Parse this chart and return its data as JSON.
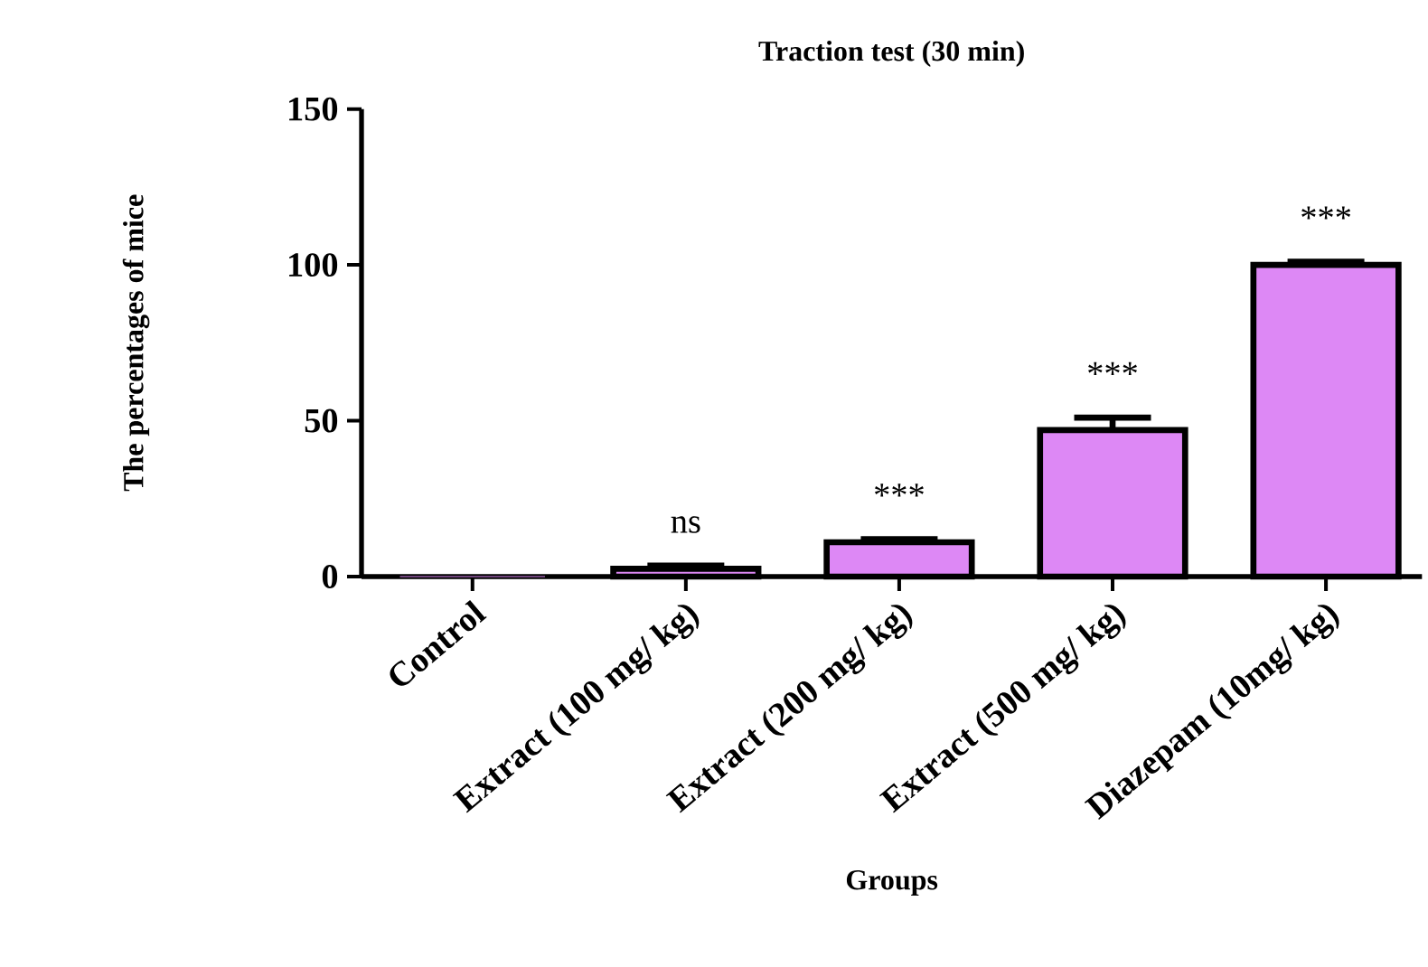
{
  "chart_data": {
    "type": "bar",
    "title": "Traction test (30 min)",
    "xlabel": "Groups",
    "ylabel": "The percentages of mice",
    "categories": [
      "Control",
      "Extract (100 mg/ kg)",
      "Extract (200 mg/ kg)",
      "Extract (500 mg/ kg)",
      "Diazepam  (10mg/ kg)"
    ],
    "values": [
      0,
      2.5,
      11,
      47,
      100
    ],
    "errors": [
      null,
      1,
      1,
      4,
      1
    ],
    "color": "#dd88f5",
    "ylim": [
      0,
      150
    ],
    "yticks": [
      0,
      50,
      100,
      150
    ],
    "grid": false,
    "annotations": [
      {
        "text": "ns",
        "x": "Extract (100 mg/ kg)",
        "y": 3.5
      },
      {
        "text": "***",
        "x": "Extract (200 mg/ kg)",
        "y": 12
      },
      {
        "text": "***",
        "x": "Extract (500 mg/ kg)",
        "y": 51
      },
      {
        "text": "***",
        "x": "Diazepam  (10mg/ kg)",
        "y": 101
      }
    ]
  }
}
